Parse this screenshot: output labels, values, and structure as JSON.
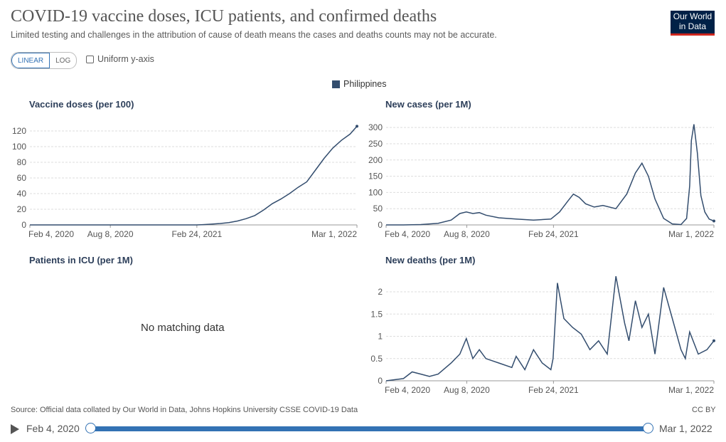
{
  "header": {
    "title": "COVID-19 vaccine doses, ICU patients, and confirmed deaths",
    "subtitle": "Limited testing and challenges in the attribution of cause of death means the cases and deaths counts may not be accurate.",
    "logo_line1": "Our World",
    "logo_line2": "in Data",
    "brand_color": "#002147",
    "brand_accent": "#ce261e"
  },
  "controls": {
    "linear_label": "LINEAR",
    "log_label": "LOG",
    "uniform_label": "Uniform y-axis",
    "uniform_checked": false
  },
  "legend": {
    "entity": "Philippines",
    "color": "#334d6e"
  },
  "footer": {
    "source": "Source: Official data collated by Our World in Data, Johns Hopkins University CSSE COVID-19 Data",
    "license": "CC BY"
  },
  "timeline": {
    "start": "Feb 4, 2020",
    "end": "Mar 1, 2022",
    "accent": "#3372b4"
  },
  "icu_message": "No matching data",
  "chart_data": [
    {
      "type": "line",
      "title": "Vaccine doses (per 100)",
      "x": [
        0,
        186,
        385,
        400,
        420,
        440,
        460,
        480,
        500,
        520,
        540,
        560,
        580,
        600,
        620,
        640,
        660,
        680,
        700,
        720,
        740,
        756
      ],
      "y": [
        0,
        0,
        0,
        0.4,
        1,
        1.8,
        3,
        5,
        8,
        12,
        19,
        27,
        33,
        40,
        48,
        55,
        70,
        85,
        98,
        108,
        116,
        126
      ],
      "x_ticks": [
        "Feb 4, 2020",
        "Aug 8, 2020",
        "Feb 24, 2021",
        "Mar 1, 2022"
      ],
      "y_ticks": [
        0,
        20,
        40,
        60,
        80,
        100,
        120
      ],
      "ylim": [
        0,
        130
      ]
    },
    {
      "type": "line",
      "title": "New cases (per 1M)",
      "x": [
        0,
        40,
        80,
        120,
        150,
        170,
        185,
        200,
        215,
        230,
        260,
        300,
        340,
        380,
        400,
        420,
        432,
        445,
        460,
        480,
        500,
        530,
        555,
        575,
        590,
        605,
        620,
        640,
        660,
        680,
        693,
        700,
        704,
        710,
        718,
        726,
        735,
        745,
        756
      ],
      "y": [
        0,
        0,
        1,
        5,
        15,
        35,
        40,
        35,
        38,
        30,
        22,
        18,
        15,
        18,
        40,
        75,
        95,
        85,
        65,
        55,
        60,
        50,
        95,
        160,
        190,
        150,
        80,
        20,
        3,
        1,
        20,
        120,
        260,
        310,
        220,
        90,
        40,
        18,
        12
      ],
      "x_ticks": [
        "Feb 4, 2020",
        "Aug 8, 2020",
        "Feb 24, 2021",
        "Mar 1, 2022"
      ],
      "y_ticks": [
        0,
        50,
        100,
        150,
        200,
        250,
        300
      ],
      "ylim": [
        0,
        320
      ]
    },
    {
      "type": "line",
      "title": "Patients in ICU (per 1M)",
      "x": [],
      "y": [],
      "x_ticks": [],
      "y_ticks": []
    },
    {
      "type": "line",
      "title": "New deaths (per 1M)",
      "x": [
        0,
        40,
        60,
        80,
        100,
        120,
        150,
        170,
        185,
        200,
        215,
        230,
        260,
        290,
        300,
        320,
        340,
        360,
        380,
        385,
        395,
        410,
        430,
        450,
        470,
        490,
        510,
        530,
        550,
        560,
        575,
        590,
        605,
        620,
        640,
        660,
        680,
        690,
        700,
        720,
        740,
        756
      ],
      "y": [
        0,
        0.05,
        0.2,
        0.15,
        0.1,
        0.15,
        0.4,
        0.6,
        0.95,
        0.5,
        0.7,
        0.5,
        0.4,
        0.3,
        0.55,
        0.25,
        0.7,
        0.4,
        0.25,
        0.5,
        2.2,
        1.4,
        1.2,
        1.05,
        0.7,
        0.9,
        0.6,
        2.35,
        1.3,
        0.9,
        1.8,
        1.2,
        1.5,
        0.6,
        2.1,
        1.4,
        0.7,
        0.5,
        1.1,
        0.6,
        0.7,
        0.9
      ],
      "x_ticks": [
        "Feb 4, 2020",
        "Aug 8, 2020",
        "Feb 24, 2021",
        "Mar 1, 2022"
      ],
      "y_ticks": [
        0,
        0.5,
        1,
        1.5,
        2
      ],
      "ylim": [
        0,
        2.4
      ]
    }
  ]
}
